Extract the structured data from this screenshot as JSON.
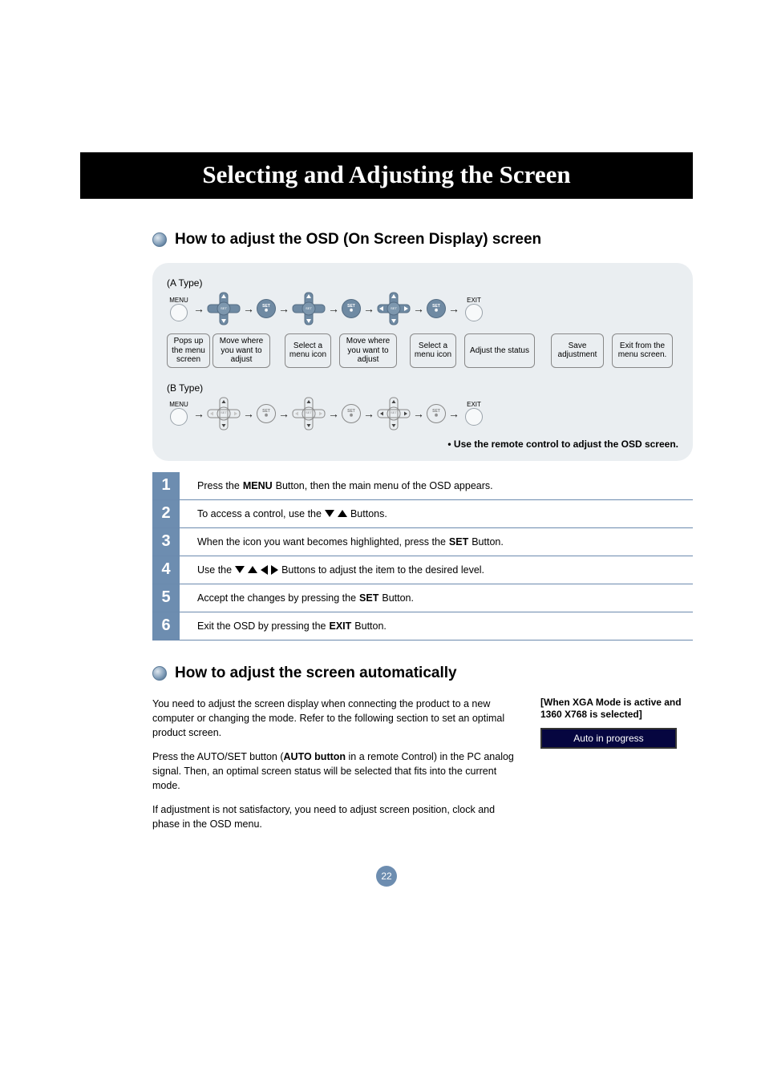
{
  "page": {
    "number": "22",
    "chapter_title": "Selecting and Adjusting the Screen"
  },
  "section1": {
    "title": "How to adjust the OSD (On Screen Display) screen",
    "type_a": "(A Type)",
    "type_b": "(B Type)",
    "menu_label": "MENU",
    "exit_label": "EXIT",
    "set_label": "SET",
    "captions": [
      "Pops up the menu screen",
      "Move where you want to adjust",
      "Select a menu icon",
      "Move where you want to adjust",
      "Select a menu icon",
      "Adjust the status",
      "Save adjustment",
      "Exit from the menu screen."
    ],
    "remote_note": "• Use the remote control to adjust the OSD screen."
  },
  "steps": [
    {
      "n": "1",
      "pre": "Press the ",
      "bold": "MENU",
      "post": " Button, then the main menu of the OSD appears."
    },
    {
      "n": "2",
      "pre": "To access a control, use the ",
      "icons": [
        "down",
        "up"
      ],
      "post": " Buttons."
    },
    {
      "n": "3",
      "pre": "When the icon you want becomes highlighted, press the ",
      "bold": "SET",
      "post": " Button."
    },
    {
      "n": "4",
      "pre": "Use the ",
      "icons": [
        "down",
        "up",
        "left",
        "right"
      ],
      "post": " Buttons to adjust the item to the desired level."
    },
    {
      "n": "5",
      "pre": "Accept the changes by pressing the ",
      "bold": "SET",
      "post": " Button."
    },
    {
      "n": "6",
      "pre": "Exit the OSD by pressing the ",
      "bold": "EXIT",
      "post": " Button."
    }
  ],
  "section2": {
    "title": "How to adjust the screen automatically",
    "para1": "You need to adjust the screen display when connecting the product to a new computer or changing the mode. Refer to the following section to set an optimal product screen.",
    "para2a": "Press the AUTO/SET button (",
    "para2_bold": "AUTO button",
    "para2b": " in a remote Control) in the PC analog signal. Then, an optimal screen status will be selected that fits into the current mode.",
    "para3": "If adjustment is not satisfactory, you need to adjust screen position, clock and phase in the OSD menu.",
    "xga_note": "[When XGA Mode is active and 1360 X768 is selected]",
    "progress_label": "Auto in progress"
  },
  "colors": {
    "step_bg": "#6d8db0",
    "panel_bg": "#eaeef1",
    "progress_bg": "#060640"
  }
}
